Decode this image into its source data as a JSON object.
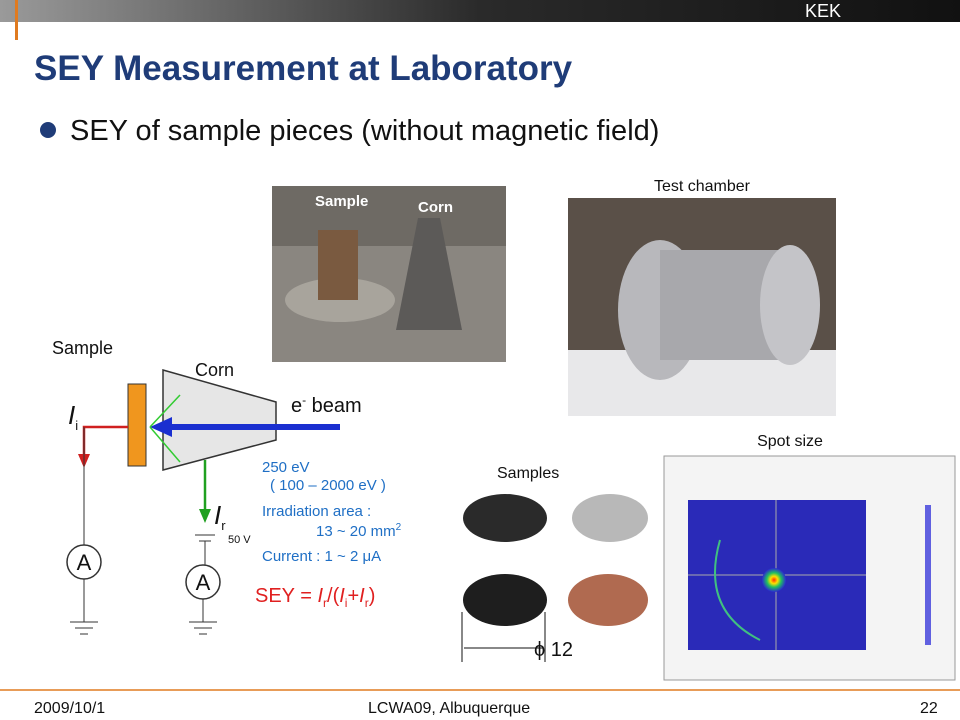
{
  "header": {
    "org": "KEK"
  },
  "title": "SEY Measurement at Laboratory",
  "bullet": "SEY of sample pieces (without magnetic field)",
  "photos": {
    "setup": {
      "labels": [
        "Sample",
        "Corn"
      ]
    },
    "chamber": {
      "caption": "Test chamber"
    },
    "samples": {
      "caption": "Samples",
      "diameter": "ϕ 12"
    },
    "spot": {
      "caption": "Spot size"
    }
  },
  "diagram": {
    "sample_label": "Sample",
    "corn_label": "Corn",
    "beam": [
      "e",
      "-",
      " beam"
    ],
    "current_i": [
      "I",
      "i"
    ],
    "current_r": [
      "I",
      "r"
    ],
    "bias": "50 V",
    "ammeters": [
      "A",
      "A"
    ]
  },
  "conditions": {
    "energy": "250 eV",
    "range": "( 100 – 2000 eV )",
    "area_label": "Irradiation area :",
    "area_value": [
      "13 ~ 20 mm",
      "2"
    ],
    "current": "Current : 1 ~ 2 μA"
  },
  "formula": [
    "SEY = ",
    "I",
    "r",
    "/(",
    "I",
    "i",
    "+",
    "I",
    "r",
    ")"
  ],
  "footer": {
    "date": "2009/10/1",
    "event": "LCWA09, Albuquerque",
    "page": "22"
  }
}
